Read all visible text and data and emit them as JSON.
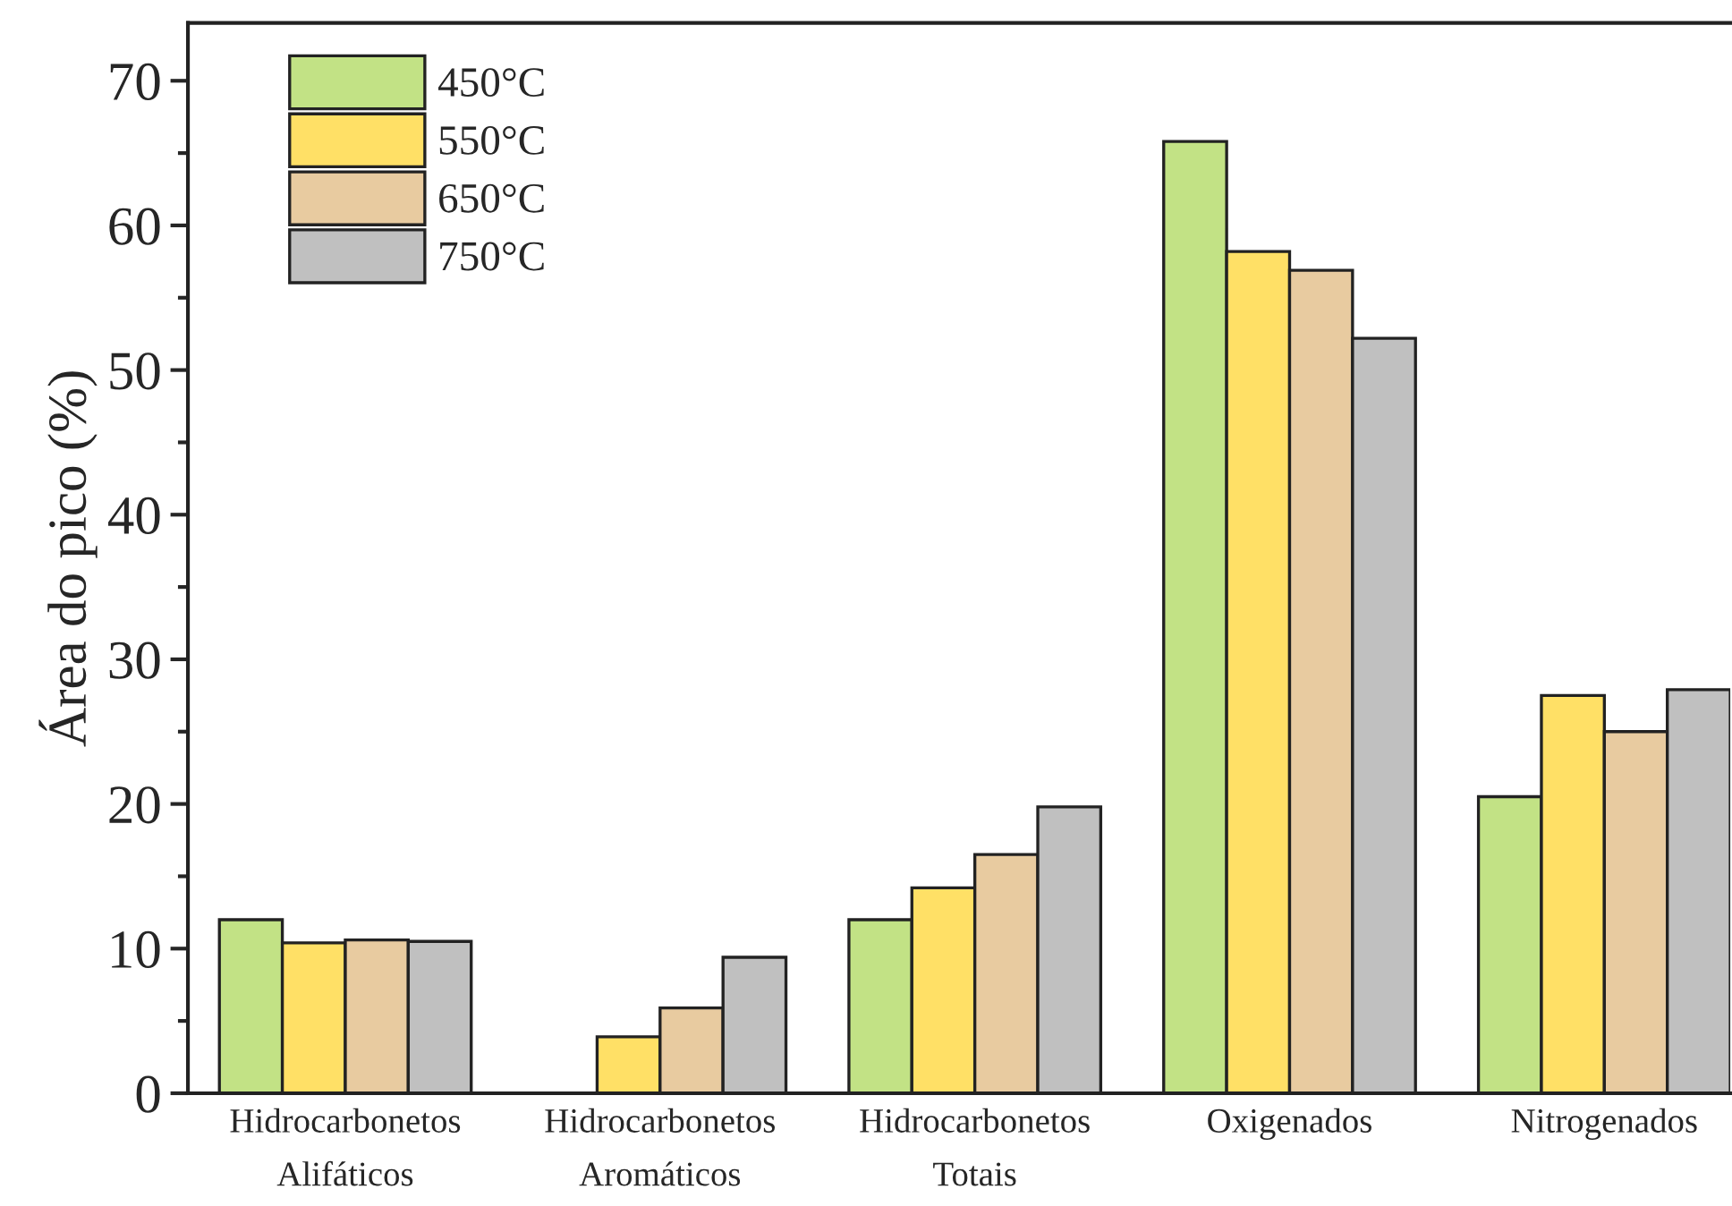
{
  "chart_data": {
    "type": "bar",
    "ylabel": "Área do pico (%)",
    "categories": [
      "Hidrocarbonetos\nAlifáticos",
      "Hidrocarbonetos\nAromáticos",
      "Hidrocarbonetos\nTotais",
      "Oxigenados",
      "Nitrogenados"
    ],
    "series": [
      {
        "name": "450°C",
        "color": "#c2e285",
        "values": [
          12.0,
          null,
          12.0,
          65.8,
          20.5
        ]
      },
      {
        "name": "550°C",
        "color": "#ffe066",
        "values": [
          10.4,
          3.9,
          14.2,
          58.2,
          27.5
        ]
      },
      {
        "name": "650°C",
        "color": "#e8cba0",
        "values": [
          10.6,
          5.9,
          16.5,
          56.9,
          25.0
        ]
      },
      {
        "name": "750°C",
        "color": "#c0c0c0",
        "values": [
          10.5,
          9.4,
          19.8,
          52.2,
          27.9
        ]
      }
    ],
    "ylim": [
      0,
      74
    ],
    "yticks": [
      0,
      10,
      20,
      30,
      40,
      50,
      60,
      70
    ],
    "grid": false,
    "legend": "top left"
  }
}
